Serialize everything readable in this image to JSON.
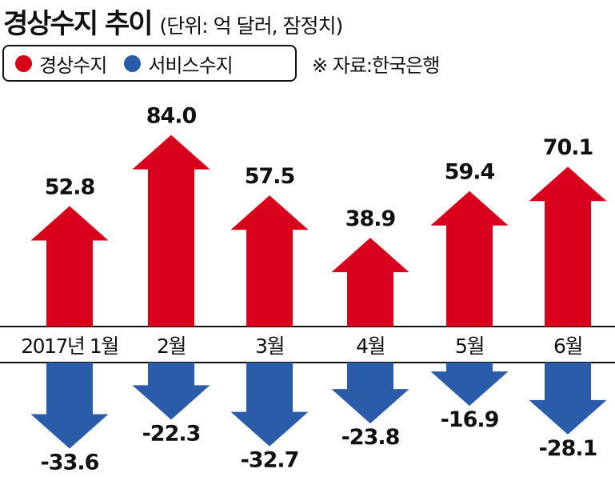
{
  "header": {
    "title": "경상수지 추이",
    "unit": "(단위: 억 달러, 잠정치)"
  },
  "legend": [
    {
      "label": "경상수지",
      "color": "#d9001b"
    },
    {
      "label": "서비스수지",
      "color": "#2a5caa"
    }
  ],
  "source": "※ 자료:한국은행",
  "chart_data": {
    "type": "bar",
    "categories": [
      "2017년 1월",
      "2월",
      "3월",
      "4월",
      "5월",
      "6월"
    ],
    "series": [
      {
        "name": "경상수지",
        "values": [
          52.8,
          84.0,
          57.5,
          38.9,
          59.4,
          70.1
        ],
        "color": "#d9001b",
        "labels": [
          "52.8",
          "84.0",
          "57.5",
          "38.9",
          "59.4",
          "70.1"
        ]
      },
      {
        "name": "서비스수지",
        "values": [
          -33.6,
          -22.3,
          -32.7,
          -23.8,
          -16.9,
          -28.1
        ],
        "color": "#2a5caa",
        "labels": [
          "-33.6",
          "-22.3",
          "-32.7",
          "-23.8",
          "-16.9",
          "-28.1"
        ]
      }
    ]
  }
}
